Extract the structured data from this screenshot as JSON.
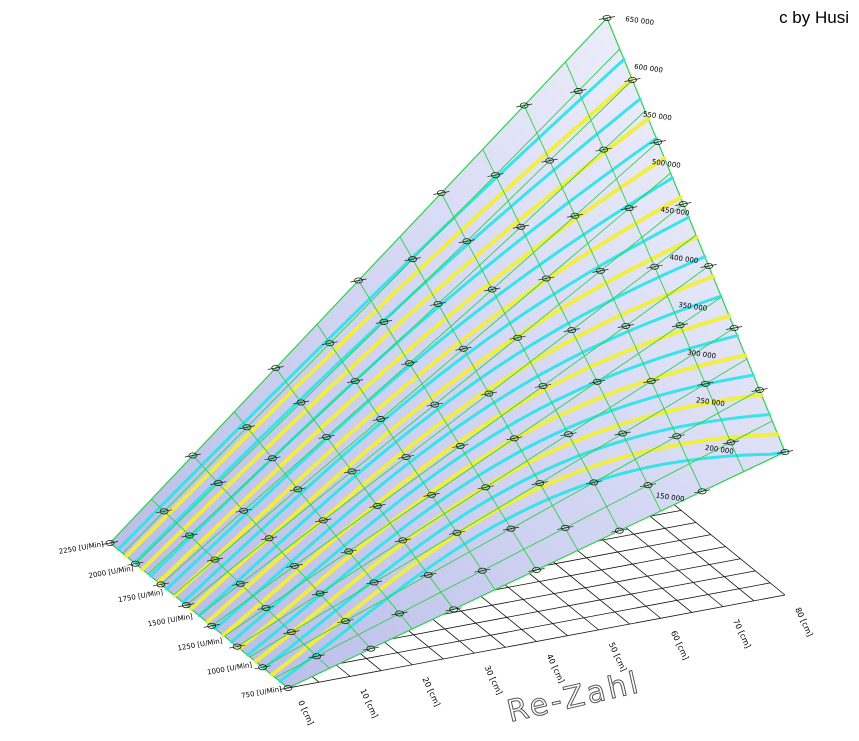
{
  "credit": "c by Husi",
  "chart_data": {
    "type": "surface-3d",
    "title": "",
    "xlabel": "Re-Zahl",
    "x_ticks": [
      "0 [cm]",
      "10 [cm]",
      "20 [cm]",
      "30 [cm]",
      "40 [cm]",
      "50 [cm]",
      "60 [cm]",
      "70 [cm]",
      "80 [cm]"
    ],
    "y_ticks": [
      "750 [U/Min]",
      "1000 [U/Min]",
      "1250 [U/Min]",
      "1500 [U/Min]",
      "1750 [U/Min]",
      "2000 [U/Min]",
      "2250 [U/Min]"
    ],
    "z_ticks": [
      "150 000",
      "200 000",
      "250 000",
      "300 000",
      "350 000",
      "400 000",
      "450 000",
      "500 000",
      "550 000",
      "600 000",
      "650 000"
    ],
    "contour_colors": {
      "cyan": "#2fe3e8",
      "yellow": "#f2ee3a",
      "grid": "#2fd14a",
      "surface": "#c9cdf0",
      "markers": "#1a1a1a"
    },
    "xlim": [
      0,
      80
    ],
    "ylim": [
      750,
      2250
    ],
    "grid": true
  }
}
